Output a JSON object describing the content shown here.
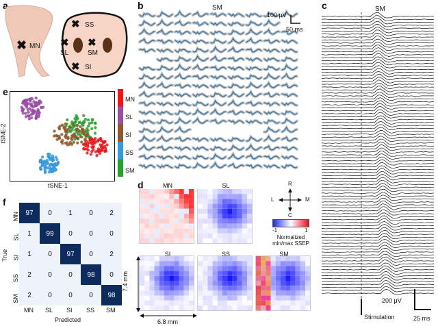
{
  "panels": {
    "a": "a",
    "b": "b",
    "c": "c",
    "e": "e",
    "f": "f",
    "d": "d"
  },
  "a": {
    "mn": "MN",
    "ss": "SS",
    "sl": "SL",
    "sm": "SM",
    "si": "SI"
  },
  "b": {
    "title": "SM",
    "scale_v": "100 μV",
    "scale_t": "50 ms"
  },
  "c": {
    "title": "SM",
    "scale_v": "200 μV",
    "stim": "Stimulation",
    "scale_t": "25 ms"
  },
  "e": {
    "xlabel": "tSNE-1",
    "ylabel": "tSNE-2",
    "legend": [
      "MN",
      "SL",
      "SI",
      "SS",
      "SM"
    ]
  },
  "f": {
    "rows": [
      "MN",
      "SL",
      "SI",
      "SS",
      "SM"
    ],
    "cols": [
      "MN",
      "SL",
      "SI",
      "SS",
      "SM"
    ],
    "matrix": [
      [
        97,
        0,
        1,
        0,
        2
      ],
      [
        1,
        99,
        0,
        0,
        0
      ],
      [
        1,
        0,
        97,
        0,
        2
      ],
      [
        2,
        0,
        0,
        98,
        0
      ],
      [
        2,
        0,
        0,
        0,
        98
      ]
    ],
    "xlabel": "Predicted",
    "ylabel": "True"
  },
  "d": {
    "titles": [
      "MN",
      "SL",
      "SI",
      "SS",
      "SM"
    ],
    "compass": {
      "r": "R",
      "l": "L",
      "m": "M",
      "c": "C"
    },
    "cbar_min": "-1",
    "cbar_max": "1",
    "cbar_label": "Normalized\nmin/max SSEP",
    "dim_y": "7.4 mm",
    "dim_x": "6.8 mm"
  },
  "colors": {
    "mn": "#e41a1c",
    "sl": "#984ea3",
    "si": "#8c5a2e",
    "ss": "#3a9ad9",
    "sm": "#2ca02c",
    "blue": "#1f4fa0",
    "trace": "#2f6fa3"
  }
}
